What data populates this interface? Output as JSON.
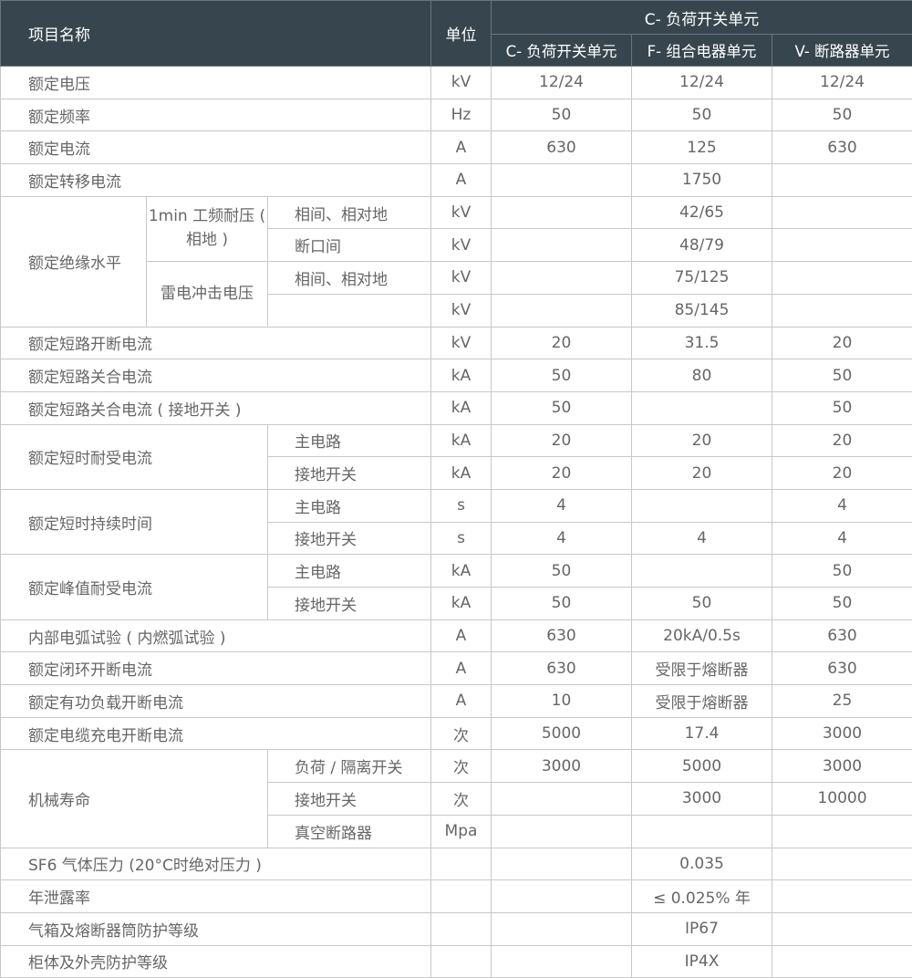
{
  "header": {
    "name": "项目名称",
    "unit": "单位",
    "group": "C- 负荷开关单元",
    "cols": [
      "C- 负荷开关单元",
      "F- 组合电器单元",
      "V- 断路器单元"
    ]
  },
  "colors": {
    "header_bg": "#37454e",
    "header_text": "#ffffff",
    "text": "#666666",
    "border": "#c8c8c8"
  },
  "rows": [
    {
      "g": "额定电压",
      "u": "kV",
      "c": "12/24",
      "f": "12/24",
      "v": "12/24"
    },
    {
      "g": "额定频率",
      "u": "Hz",
      "c": "50",
      "f": "50",
      "v": "50"
    },
    {
      "g": "额定电流",
      "u": "A",
      "c": "630",
      "f": "125",
      "v": "630"
    },
    {
      "g": "额定转移电流",
      "u": "A",
      "c": "",
      "f": "1750",
      "v": ""
    },
    {
      "g": "额定绝缘水平",
      "s": "1min 工频耐压 ( 相地 )",
      "i": "相间、相对地",
      "u": "kV",
      "c": "",
      "f": "42/65",
      "v": ""
    },
    {
      "g": "额定绝缘水平",
      "s": "1min 工频耐压 ( 相地 )",
      "i": "断口间",
      "u": "kV",
      "c": "",
      "f": "48/79",
      "v": ""
    },
    {
      "g": "额定绝缘水平",
      "s": "雷电冲击电压",
      "i": "相间、相对地",
      "u": "kV",
      "c": "",
      "f": "75/125",
      "v": ""
    },
    {
      "g": "额定绝缘水平",
      "s": "雷电冲击电压",
      "i": "",
      "u": "kV",
      "c": "",
      "f": "85/145",
      "v": ""
    },
    {
      "g": "额定短路开断电流",
      "u": "kV",
      "c": "20",
      "f": "31.5",
      "v": "20"
    },
    {
      "g": "额定短路关合电流",
      "u": "kA",
      "c": "50",
      "f": "80",
      "v": "50"
    },
    {
      "g": "额定短路关合电流 ( 接地开关 )",
      "u": "kA",
      "c": "50",
      "f": "",
      "v": "50"
    },
    {
      "g": "额定短时耐受电流",
      "i": "主电路",
      "u": "kA",
      "c": "20",
      "f": "20",
      "v": "20"
    },
    {
      "g": "额定短时耐受电流",
      "i": "接地开关",
      "u": "kA",
      "c": "20",
      "f": "20",
      "v": "20"
    },
    {
      "g": "额定短时持续时间",
      "i": "主电路",
      "u": "s",
      "c": "4",
      "f": "",
      "v": "4"
    },
    {
      "g": "额定短时持续时间",
      "i": "接地开关",
      "u": "s",
      "c": "4",
      "f": "4",
      "v": "4"
    },
    {
      "g": "额定峰值耐受电流",
      "i": "主电路",
      "u": "kA",
      "c": "50",
      "f": "",
      "v": "50"
    },
    {
      "g": "额定峰值耐受电流",
      "i": "接地开关",
      "u": "kA",
      "c": "50",
      "f": "50",
      "v": "50"
    },
    {
      "g": "内部电弧试验 ( 内燃弧试验 )",
      "u": "A",
      "c": "630",
      "f": "20kA/0.5s",
      "v": "630"
    },
    {
      "g": "额定闭环开断电流",
      "u": "A",
      "c": "630",
      "f": "受限于熔断器",
      "v": "630"
    },
    {
      "g": "额定有功负载开断电流",
      "u": "A",
      "c": "10",
      "f": "受限于熔断器",
      "v": "25"
    },
    {
      "g": "额定电缆充电开断电流",
      "u": "次",
      "c": "5000",
      "f": "17.4",
      "v": "3000"
    },
    {
      "g": "机械寿命",
      "i": "负荷 / 隔离开关",
      "u": "次",
      "c": "3000",
      "f": "5000",
      "v": "3000"
    },
    {
      "g": "机械寿命",
      "i": "接地开关",
      "u": "次",
      "c": "",
      "f": "3000",
      "v": "10000"
    },
    {
      "g": "机械寿命",
      "i": "真空断路器",
      "u": "Mpa",
      "c": "",
      "f": "",
      "v": ""
    },
    {
      "g": "SF6 气体压力 (20°C时绝对压力 )",
      "u": "",
      "c": "",
      "f": "0.035",
      "v": ""
    },
    {
      "g": "年泄露率",
      "u": "",
      "c": "",
      "f": "≤ 0.025% 年",
      "v": ""
    },
    {
      "g": "气箱及熔断器筒防护等级",
      "u": "",
      "c": "",
      "f": "IP67",
      "v": ""
    },
    {
      "g": "柜体及外壳防护等级",
      "u": "",
      "c": "",
      "f": "IP4X",
      "v": ""
    }
  ]
}
